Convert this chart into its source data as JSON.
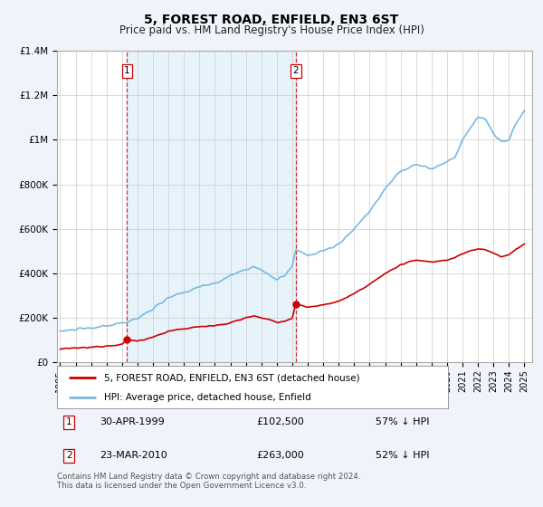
{
  "title": "5, FOREST ROAD, ENFIELD, EN3 6ST",
  "subtitle": "Price paid vs. HM Land Registry's House Price Index (HPI)",
  "hpi_label": "HPI: Average price, detached house, Enfield",
  "property_label": "5, FOREST ROAD, ENFIELD, EN3 6ST (detached house)",
  "footer": "Contains HM Land Registry data © Crown copyright and database right 2024.\nThis data is licensed under the Open Government Licence v3.0.",
  "transaction1_date": "30-APR-1999",
  "transaction1_price": "£102,500",
  "transaction1_hpi": "57% ↓ HPI",
  "transaction1_year": 1999.33,
  "transaction1_value": 102500,
  "transaction2_date": "23-MAR-2010",
  "transaction2_price": "£263,000",
  "transaction2_hpi": "52% ↓ HPI",
  "transaction2_year": 2010.22,
  "transaction2_value": 263000,
  "hpi_color": "#7ab8e0",
  "hpi_fill_color": "#ddeef8",
  "property_color": "#cc0000",
  "vline_color": "#cc0000",
  "background_color": "#f0f4fa",
  "plot_bg_color": "#ffffff",
  "ylim_max": 1400000,
  "xlim_start": 1994.8,
  "xlim_end": 2025.5,
  "title_fontsize": 10,
  "subtitle_fontsize": 8.5
}
